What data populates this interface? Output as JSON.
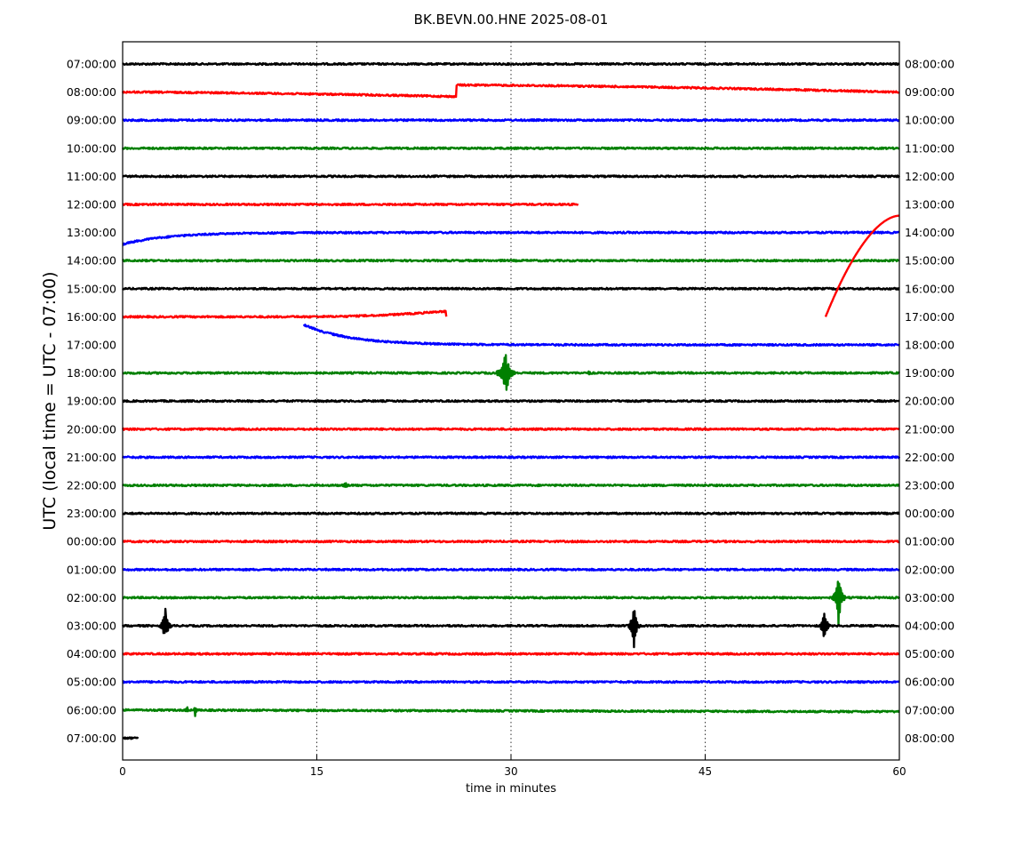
{
  "chart_data": {
    "type": "line",
    "title": "BK.BEVN.00.HNE 2025-08-01",
    "xlabel": "time in minutes",
    "ylabel": "UTC (local time = UTC - 07:00)",
    "xlim": [
      0,
      60
    ],
    "x_ticks": [
      "0",
      "15",
      "30",
      "45",
      "60"
    ],
    "grid": "vertical dotted at 15, 30, 45",
    "left_labels": [
      "07:00:00",
      "08:00:00",
      "09:00:00",
      "10:00:00",
      "11:00:00",
      "12:00:00",
      "13:00:00",
      "14:00:00",
      "15:00:00",
      "16:00:00",
      "17:00:00",
      "18:00:00",
      "19:00:00",
      "20:00:00",
      "21:00:00",
      "22:00:00",
      "23:00:00",
      "00:00:00",
      "01:00:00",
      "02:00:00",
      "03:00:00",
      "04:00:00",
      "05:00:00",
      "06:00:00",
      "07:00:00"
    ],
    "right_labels": [
      "08:00:00",
      "09:00:00",
      "10:00:00",
      "11:00:00",
      "12:00:00",
      "13:00:00",
      "14:00:00",
      "15:00:00",
      "16:00:00",
      "17:00:00",
      "18:00:00",
      "19:00:00",
      "20:00:00",
      "21:00:00",
      "22:00:00",
      "23:00:00",
      "00:00:00",
      "01:00:00",
      "02:00:00",
      "03:00:00",
      "04:00:00",
      "05:00:00",
      "06:00:00",
      "07:00:00",
      "08:00:00"
    ],
    "colors": [
      "#000000",
      "#ff0000",
      "#0000ff",
      "#008000"
    ],
    "traces": [
      {
        "start": 0,
        "end": 60
      },
      {
        "start": 0,
        "end": 60,
        "segments": [
          {
            "from": 0,
            "to": 25.8,
            "drift": [
              0,
              0.16
            ]
          },
          {
            "from": 25.8,
            "to": 60,
            "drift": [
              -0.25,
              0
            ]
          }
        ]
      },
      {
        "start": 0,
        "end": 60
      },
      {
        "start": 0,
        "end": 60
      },
      {
        "start": 0,
        "end": 60
      },
      {
        "start": 0,
        "end": 35.2
      },
      {
        "start": 0,
        "end": 60,
        "transients": [
          {
            "at": 0,
            "amp": 0.42,
            "tau": 3.5,
            "dir": 1
          }
        ]
      },
      {
        "start": 0,
        "end": 60
      },
      {
        "start": 0,
        "end": 60
      },
      {
        "start": 0,
        "end": 25,
        "ramp": {
          "from": 14,
          "to": 25,
          "amp": -0.2
        }
      },
      {
        "start": 14,
        "end": 60,
        "transients": [
          {
            "at": 14,
            "amp": -0.72,
            "tau": 3.5,
            "dir": 1
          }
        ]
      },
      {
        "start": 0,
        "end": 60,
        "events": [
          {
            "at": 29.6,
            "amp": 0.75,
            "width": 0.8
          },
          {
            "at": 36,
            "amp": 0.05,
            "width": 0.3
          }
        ]
      },
      {
        "start": 0,
        "end": 60
      },
      {
        "start": 0,
        "end": 60
      },
      {
        "start": 0,
        "end": 60
      },
      {
        "start": 0,
        "end": 60,
        "events": [
          {
            "at": 17.2,
            "amp": 0.08,
            "width": 0.5
          }
        ]
      },
      {
        "start": 0,
        "end": 60
      },
      {
        "start": 0,
        "end": 60
      },
      {
        "start": 0,
        "end": 60
      },
      {
        "start": 0,
        "end": 60,
        "events": [
          {
            "at": 55.3,
            "amp": 0.9,
            "width": 0.6
          }
        ]
      },
      {
        "start": 0,
        "end": 60,
        "events": [
          {
            "at": 3.3,
            "amp": 0.6,
            "width": 0.5
          },
          {
            "at": 39.5,
            "amp": 0.75,
            "width": 0.5
          },
          {
            "at": 54.2,
            "amp": 0.55,
            "width": 0.5
          }
        ]
      },
      {
        "start": 0,
        "end": 60
      },
      {
        "start": 0,
        "end": 60
      },
      {
        "start": 0,
        "end": 60,
        "events": [
          {
            "at": 5.0,
            "amp": 0.15,
            "width": 0.2
          },
          {
            "at": 5.6,
            "amp": 0.22,
            "width": 0.2
          }
        ],
        "drift": [
          0,
          0.06
        ]
      },
      {
        "start": 0,
        "end": 1.2
      }
    ],
    "overlay_curve": {
      "color": "#ff0000",
      "x_start": 54.3,
      "x_end": 60,
      "row_start": 9,
      "row_end": 5.4
    }
  }
}
